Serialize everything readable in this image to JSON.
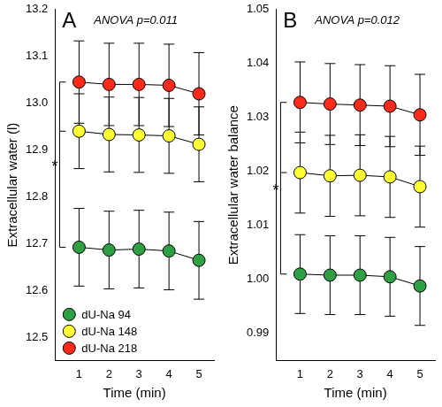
{
  "chart_data": [
    {
      "type": "line",
      "title": "A",
      "subtitle": "ANOVA p=0.011",
      "x_label": "Time (min)",
      "y_label": "Extracellular water (l)",
      "x": [
        1,
        2,
        3,
        4,
        5
      ],
      "xlim": [
        0.2,
        5.5
      ],
      "xticks": [
        1,
        2,
        3,
        4,
        5
      ],
      "ylim": [
        12.45,
        13.2
      ],
      "yticks": [
        12.5,
        12.6,
        12.7,
        12.8,
        12.9,
        {
          "value": 13,
          "label": "13.0"
        },
        13.1,
        13.2
      ],
      "grid": false,
      "legend": "lower left",
      "marker": "circle",
      "line_style": "solid",
      "series": [
        {
          "name": "dU-Na 94",
          "color": "#2ea043",
          "values": [
            12.692,
            12.686,
            12.688,
            12.684,
            12.664
          ],
          "errors": [
            0.083,
            0.083,
            0.083,
            0.083,
            0.083
          ]
        },
        {
          "name": "dU-Na 148",
          "color": "#ffff33",
          "values": [
            12.94,
            12.933,
            12.932,
            12.93,
            12.912
          ],
          "errors": [
            0.08,
            0.08,
            0.08,
            0.08,
            0.08
          ]
        },
        {
          "name": "dU-Na 218",
          "color": "#ff2a1a",
          "values": [
            13.045,
            13.04,
            13.04,
            13.038,
            13.02
          ],
          "errors": [
            0.088,
            0.088,
            0.088,
            0.088,
            0.088
          ]
        }
      ],
      "annotations": [
        {
          "text": "*",
          "bracket": [
            "dU-Na 218",
            "dU-Na 148",
            "dU-Na 94"
          ]
        }
      ]
    },
    {
      "type": "line",
      "title": "B",
      "subtitle": "ANOVA p=0.012",
      "x_label": "Time (min)",
      "y_label": "Extracellular water balance",
      "x": [
        1,
        2,
        3,
        4,
        5
      ],
      "xlim": [
        0.2,
        5.5
      ],
      "xticks": [
        1,
        2,
        3,
        4,
        5
      ],
      "ylim": [
        0.985,
        1.05
      ],
      "yticks": [
        0.99,
        {
          "value": 1,
          "label": "1.00"
        },
        1.01,
        1.02,
        1.03,
        1.04,
        1.05
      ],
      "grid": false,
      "marker": "circle",
      "line_style": "solid",
      "series": [
        {
          "name": "dU-Na 94",
          "color": "#2ea043",
          "values": [
            1.001,
            1.0008,
            1.0008,
            1.0005,
            0.9988
          ],
          "errors": [
            0.0073,
            0.0073,
            0.0073,
            0.0073,
            0.0073
          ]
        },
        {
          "name": "dU-Na 148",
          "color": "#ffff33",
          "values": [
            1.0198,
            1.0192,
            1.0193,
            1.019,
            1.0172
          ],
          "errors": [
            0.0075,
            0.0075,
            0.0075,
            0.0075,
            0.0075
          ]
        },
        {
          "name": "dU-Na 218",
          "color": "#ff2a1a",
          "values": [
            1.0328,
            1.0325,
            1.0323,
            1.0321,
            1.0305
          ],
          "errors": [
            0.0075,
            0.0075,
            0.0075,
            0.0075,
            0.0075
          ]
        }
      ],
      "annotations": [
        {
          "text": "*",
          "bracket": [
            "dU-Na 218",
            "dU-Na 148",
            "dU-Na 94"
          ]
        }
      ]
    }
  ]
}
